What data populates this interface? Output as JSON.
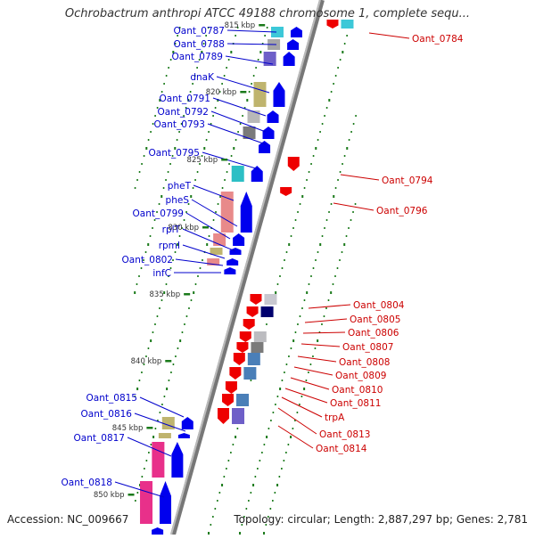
{
  "title": "Ochrobactrum anthropi ATCC 49188 chromosome 1, complete sequ...",
  "footer": {
    "accession": "Accession: NC_009667",
    "summary": "Topology: circular; Length: 2,887,297 bp; Genes: 2,781"
  },
  "kbp_labels": [
    "815 kbp",
    "820 kbp",
    "825 kbp",
    "830 kbp",
    "835 kbp",
    "840 kbp",
    "845 kbp",
    "850 kbp"
  ],
  "genes_left": [
    "Oant_0787",
    "Oant_0788",
    "Oant_0789",
    "dnaK",
    "Oant_0791",
    "Oant_0792",
    "Oant_0793",
    "Oant_0795",
    "pheT",
    "pheS",
    "Oant_0799",
    "rplT",
    "rpmI",
    "Oant_0802",
    "infC",
    "Oant_0815",
    "Oant_0816",
    "Oant_0817",
    "Oant_0818"
  ],
  "genes_right": [
    "Oant_0784",
    "Oant_0794",
    "Oant_0796",
    "Oant_0804",
    "Oant_0805",
    "Oant_0806",
    "Oant_0807",
    "Oant_0808",
    "Oant_0809",
    "Oant_0810",
    "Oant_0811",
    "trpA",
    "Oant_0813",
    "Oant_0814"
  ],
  "colors": {
    "forward_label": "#0000cc",
    "reverse_label": "#cc0000",
    "forward_feature": "#0000ee",
    "reverse_feature": "#ee0000",
    "backbone": "#888888",
    "tick": "#1a7a1a"
  }
}
